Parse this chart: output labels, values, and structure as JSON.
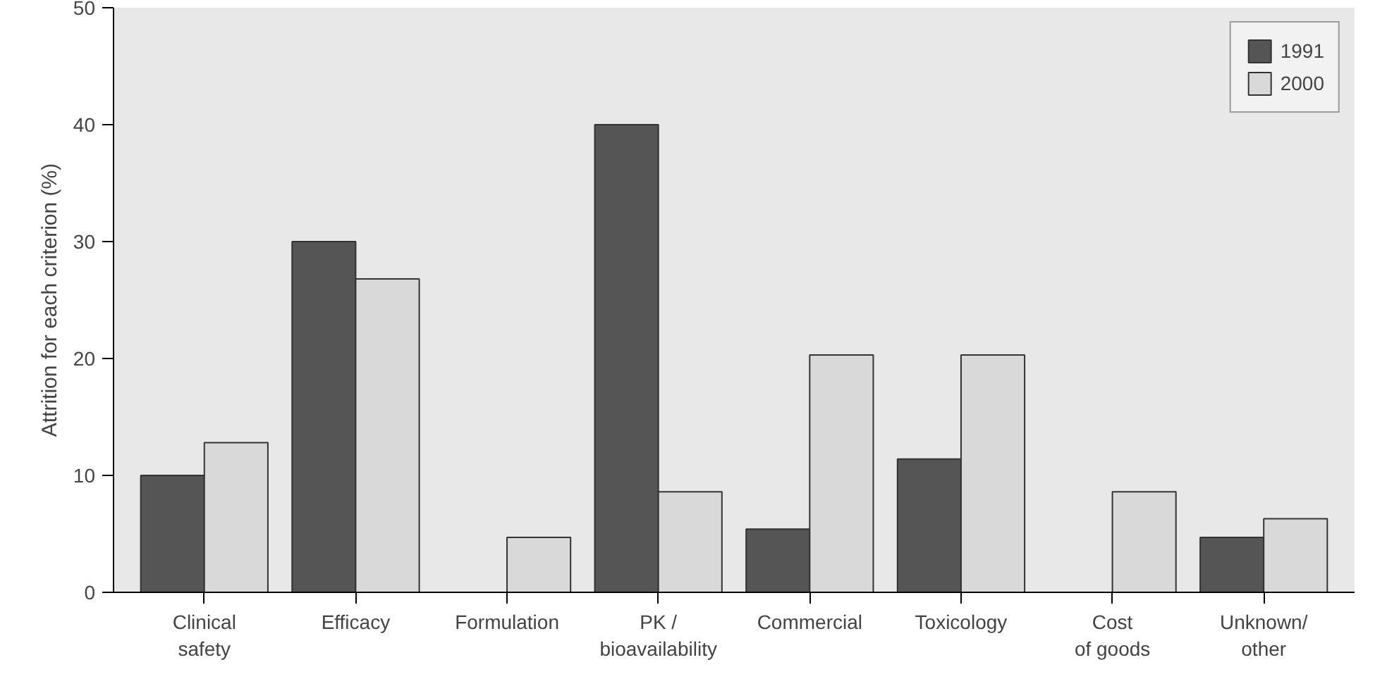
{
  "chart_data": {
    "type": "bar",
    "ylabel": "Attrition for each criterion (%)",
    "categories": [
      "Clinical\nsafety",
      "Efficacy",
      "Formulation",
      "PK /\nbioavailability",
      "Commercial",
      "Toxicology",
      "Cost\nof goods",
      "Unknown/\nother"
    ],
    "series": [
      {
        "name": "1991",
        "color": "#555555",
        "values": [
          10,
          30,
          null,
          40,
          5.4,
          11.4,
          null,
          4.7
        ]
      },
      {
        "name": "2000",
        "color": "#d9d9d9",
        "values": [
          12.8,
          26.8,
          4.7,
          8.6,
          20.3,
          20.3,
          8.6,
          6.3
        ]
      }
    ],
    "ylim": [
      0,
      50
    ],
    "yticks": [
      0,
      10,
      20,
      30,
      40,
      50
    ],
    "legend": "top right"
  }
}
